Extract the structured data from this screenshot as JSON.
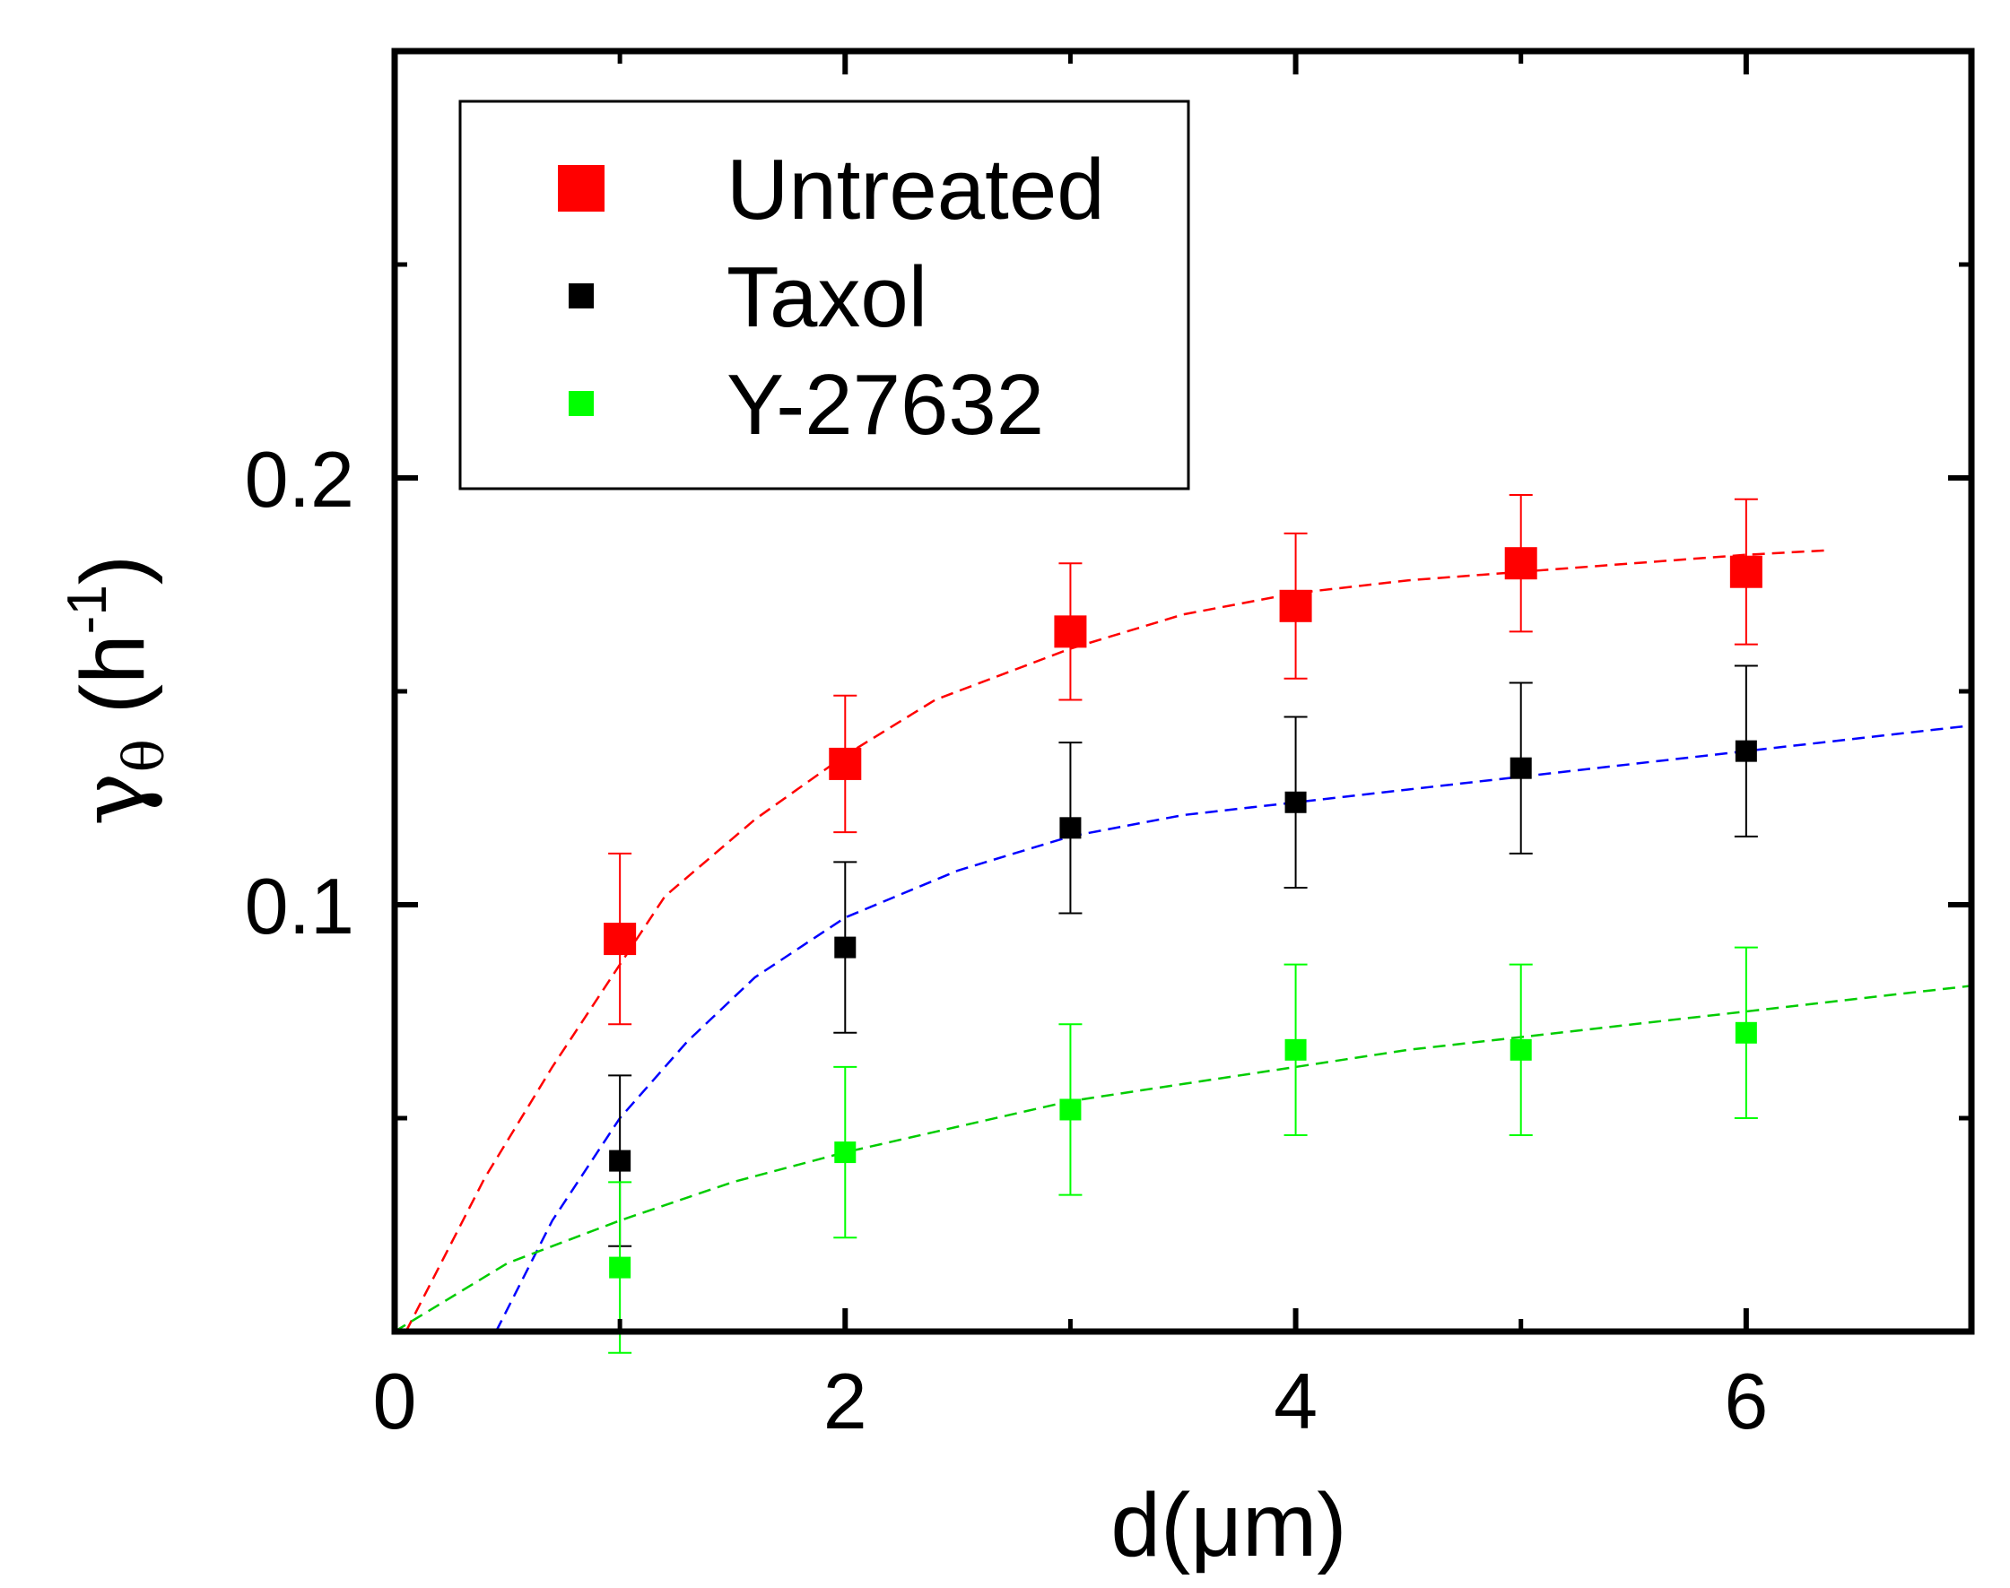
{
  "chart_data": {
    "type": "scatter",
    "xlabel": "d(μm)",
    "ylabel": {
      "symbol": "γ",
      "subscript": "θ",
      "open": " (h",
      "superscript": "-1",
      "close": ")"
    },
    "xlim": [
      0,
      7
    ],
    "ylim": [
      0,
      0.3
    ],
    "x_ticks": [
      {
        "value": 0,
        "label": "0"
      },
      {
        "value": 2,
        "label": "2"
      },
      {
        "value": 4,
        "label": "4"
      },
      {
        "value": 6,
        "label": "6"
      }
    ],
    "y_ticks": [
      {
        "value": 0.1,
        "label": "0.1"
      },
      {
        "value": 0.2,
        "label": "0.2"
      }
    ],
    "x_minor_ticks": [
      1,
      3,
      5
    ],
    "y_minor_ticks": [
      0.05,
      0.15,
      0.25
    ],
    "grid": false,
    "legend_position": "top-left",
    "series": [
      {
        "name": "Untreated",
        "color": "#ff0000",
        "fit_color": "#ff0000",
        "marker": "large-square",
        "x": [
          1,
          2,
          3,
          4,
          5,
          6
        ],
        "y": [
          0.092,
          0.133,
          0.164,
          0.17,
          0.18,
          0.178
        ],
        "err": [
          0.02,
          0.016,
          0.016,
          0.017,
          0.016,
          0.017
        ],
        "fit": {
          "x": [
            0.05,
            0.4,
            0.7,
            1.2,
            1.6,
            2.0,
            2.4,
            3.0,
            3.5,
            4.0,
            4.5,
            5.0,
            5.5,
            6.0,
            6.35
          ],
          "y": [
            0.0,
            0.036,
            0.062,
            0.102,
            0.12,
            0.135,
            0.148,
            0.16,
            0.168,
            0.173,
            0.176,
            0.178,
            0.18,
            0.182,
            0.183
          ]
        }
      },
      {
        "name": "Taxol",
        "color": "#000000",
        "fit_color": "#0000ff",
        "marker": "square",
        "x": [
          1,
          2,
          3,
          4,
          5,
          6
        ],
        "y": [
          0.04,
          0.09,
          0.118,
          0.124,
          0.132,
          0.136
        ],
        "err": [
          0.02,
          0.02,
          0.02,
          0.02,
          0.02,
          0.02
        ],
        "fit": {
          "x": [
            0.45,
            0.7,
            1.0,
            1.3,
            1.6,
            2.0,
            2.5,
            3.0,
            3.5,
            4.0,
            4.5,
            5.0,
            5.5,
            6.0,
            6.5,
            7.0
          ],
          "y": [
            0.0,
            0.026,
            0.05,
            0.068,
            0.083,
            0.097,
            0.108,
            0.116,
            0.121,
            0.124,
            0.127,
            0.13,
            0.133,
            0.136,
            0.139,
            0.142
          ]
        }
      },
      {
        "name": "Y-27632",
        "color": "#00ff00",
        "fit_color": "#00cc00",
        "marker": "square",
        "x": [
          1,
          2,
          3,
          4,
          5,
          6
        ],
        "y": [
          0.015,
          0.042,
          0.052,
          0.066,
          0.066,
          0.07
        ],
        "err": [
          0.02,
          0.02,
          0.02,
          0.02,
          0.02,
          0.02
        ],
        "fit": {
          "x": [
            0.0,
            0.5,
            1.0,
            1.5,
            2.0,
            2.5,
            3.0,
            3.5,
            4.0,
            4.5,
            5.0,
            5.5,
            6.0,
            6.5,
            7.0
          ],
          "y": [
            0.0,
            0.016,
            0.026,
            0.035,
            0.042,
            0.048,
            0.054,
            0.058,
            0.062,
            0.066,
            0.069,
            0.072,
            0.075,
            0.078,
            0.081
          ]
        }
      }
    ]
  }
}
